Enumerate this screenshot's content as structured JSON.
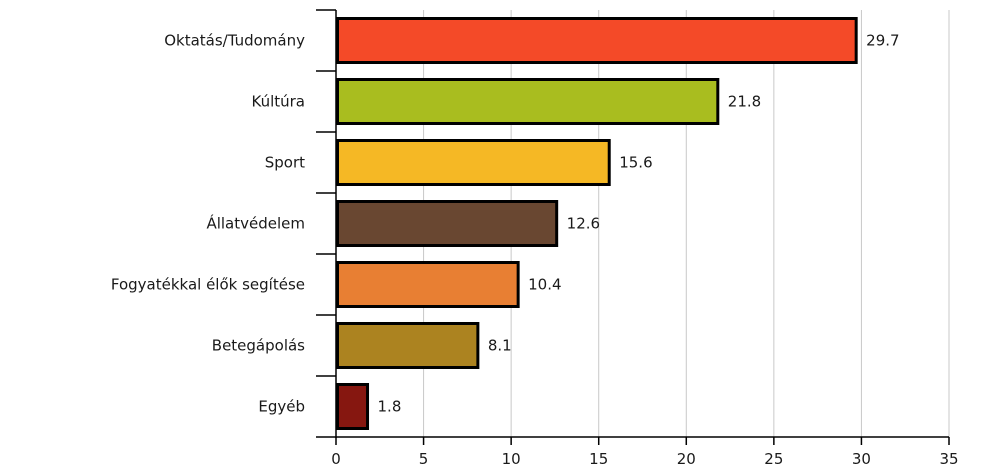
{
  "chart_data": {
    "type": "bar",
    "orientation": "horizontal",
    "categories": [
      "Oktatás/Tudomány",
      "Kúltúra",
      "Sport",
      "Állatvédelem",
      "Fogyatékkal élők segítése",
      "Betegápolás",
      "Egyéb"
    ],
    "values": [
      29.7,
      21.8,
      15.6,
      12.6,
      10.4,
      8.1,
      1.8
    ],
    "value_labels": [
      "29.7",
      "21.8",
      "15.6",
      "12.6",
      "10.4",
      "8.1",
      "1.8"
    ],
    "colors": [
      "#f44a28",
      "#a9bd1f",
      "#f5b825",
      "#694731",
      "#e87f33",
      "#ac8320",
      "#861710"
    ],
    "xlim": [
      0,
      35
    ],
    "xticks": [
      0,
      5,
      10,
      15,
      20,
      25,
      30,
      35
    ],
    "xtick_labels": [
      "0",
      "5",
      "10",
      "15",
      "20",
      "25",
      "30",
      "35"
    ],
    "title": "",
    "xlabel": "",
    "ylabel": "",
    "grid": "vertical",
    "legend": "none"
  }
}
